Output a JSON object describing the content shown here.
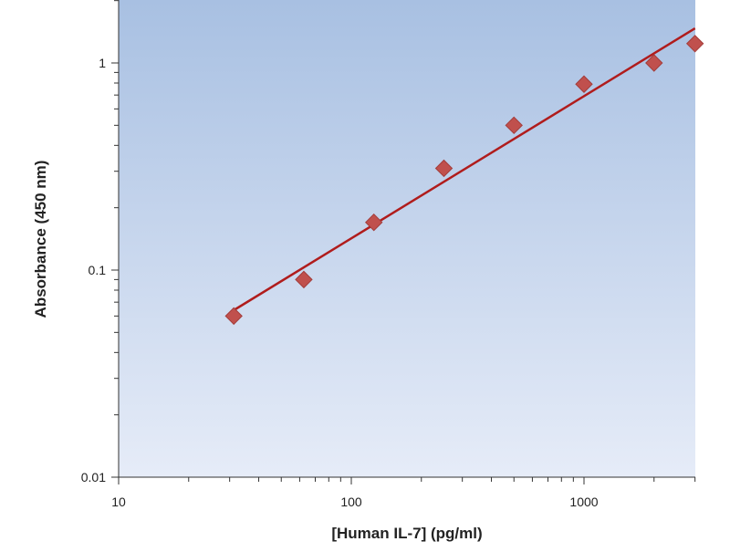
{
  "chart_data": {
    "type": "scatter",
    "xlabel": "[Human IL-7] (pg/ml)",
    "ylabel": "Absorbance (450 nm)",
    "x_scale": "log",
    "y_scale": "log",
    "xlim": [
      10,
      3000
    ],
    "ylim": [
      0.01,
      2
    ],
    "x_ticks": [
      {
        "value": 10,
        "label": "10"
      },
      {
        "value": 100,
        "label": "100"
      },
      {
        "value": 1000,
        "label": "1000"
      }
    ],
    "y_ticks": [
      {
        "value": 0.01,
        "label": "0.01"
      },
      {
        "value": 0.1,
        "label": "0.1"
      },
      {
        "value": 1,
        "label": "1"
      }
    ],
    "grid": false,
    "legend": "none",
    "series": [
      {
        "points": [
          {
            "x": 31.25,
            "y": 0.06
          },
          {
            "x": 62.5,
            "y": 0.09
          },
          {
            "x": 125,
            "y": 0.17
          },
          {
            "x": 250,
            "y": 0.31
          },
          {
            "x": 500,
            "y": 0.5
          },
          {
            "x": 1000,
            "y": 0.79
          },
          {
            "x": 2000,
            "y": 1.0
          },
          {
            "x": 3000,
            "y": 1.24
          }
        ]
      }
    ],
    "fit_line": {
      "x": [
        31.25,
        3000
      ],
      "y": [
        0.064,
        1.47
      ]
    },
    "colors": {
      "marker": "#c0504d",
      "line": "#b01c1c",
      "plot_bg_top": "#a8c0e2",
      "plot_bg_bottom": "#e6ecf8"
    }
  }
}
